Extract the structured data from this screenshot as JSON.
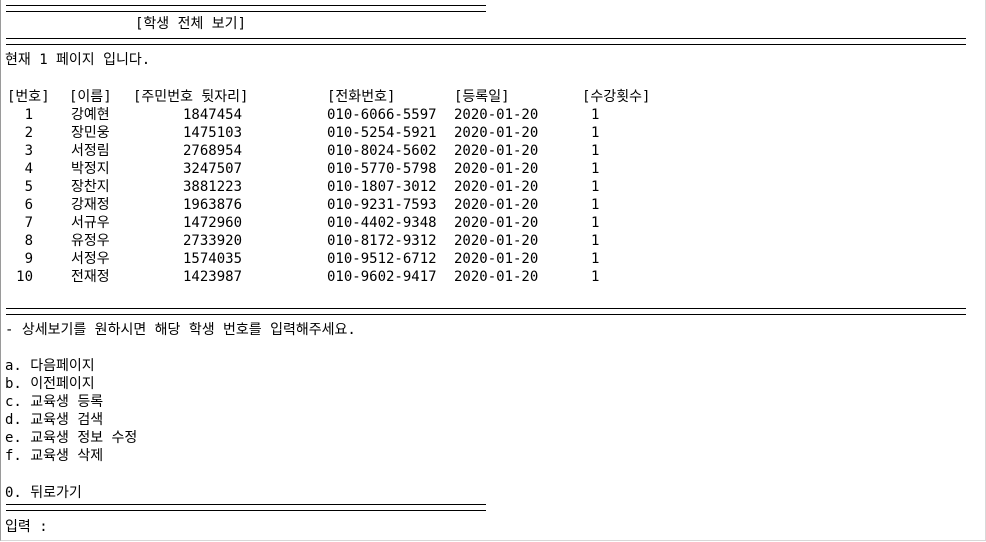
{
  "screen": {
    "title": "[학생 전체 보기]",
    "page_info": "현재 1 페이지 입니다.",
    "hint": "- 상세보기를 원하시면 해당 학생 번호를 입력해주세요.",
    "input_prompt": "입력 :",
    "rule_short": "=================================================================",
    "rule_long": "=================================================================================================================================="
  },
  "table": {
    "headers": {
      "no": "[번호]",
      "name": "[이름]",
      "ssn": "[주민번호 뒷자리]",
      "phone": "[전화번호]",
      "date": "[등록일]",
      "count": "[수강횟수]"
    },
    "rows": [
      {
        "no": "1",
        "name": "강예현",
        "ssn": "1847454",
        "phone": "010-6066-5597",
        "date": "2020-01-20",
        "count": "1"
      },
      {
        "no": "2",
        "name": "장민웅",
        "ssn": "1475103",
        "phone": "010-5254-5921",
        "date": "2020-01-20",
        "count": "1"
      },
      {
        "no": "3",
        "name": "서정림",
        "ssn": "2768954",
        "phone": "010-8024-5602",
        "date": "2020-01-20",
        "count": "1"
      },
      {
        "no": "4",
        "name": "박정지",
        "ssn": "3247507",
        "phone": "010-5770-5798",
        "date": "2020-01-20",
        "count": "1"
      },
      {
        "no": "5",
        "name": "장찬지",
        "ssn": "3881223",
        "phone": "010-1807-3012",
        "date": "2020-01-20",
        "count": "1"
      },
      {
        "no": "6",
        "name": "강재정",
        "ssn": "1963876",
        "phone": "010-9231-7593",
        "date": "2020-01-20",
        "count": "1"
      },
      {
        "no": "7",
        "name": "서규우",
        "ssn": "1472960",
        "phone": "010-4402-9348",
        "date": "2020-01-20",
        "count": "1"
      },
      {
        "no": "8",
        "name": "유정우",
        "ssn": "2733920",
        "phone": "010-8172-9312",
        "date": "2020-01-20",
        "count": "1"
      },
      {
        "no": "9",
        "name": "서정우",
        "ssn": "1574035",
        "phone": "010-9512-6712",
        "date": "2020-01-20",
        "count": "1"
      },
      {
        "no": "10",
        "name": "전재정",
        "ssn": "1423987",
        "phone": "010-9602-9417",
        "date": "2020-01-20",
        "count": "1"
      }
    ]
  },
  "menu": {
    "items": [
      "a. 다음페이지",
      "b. 이전페이지",
      "c. 교육생 등록",
      "d. 교육생 검색",
      "e. 교육생 정보 수정",
      "f. 교육생 삭제"
    ],
    "back": "0. 뒤로가기"
  }
}
